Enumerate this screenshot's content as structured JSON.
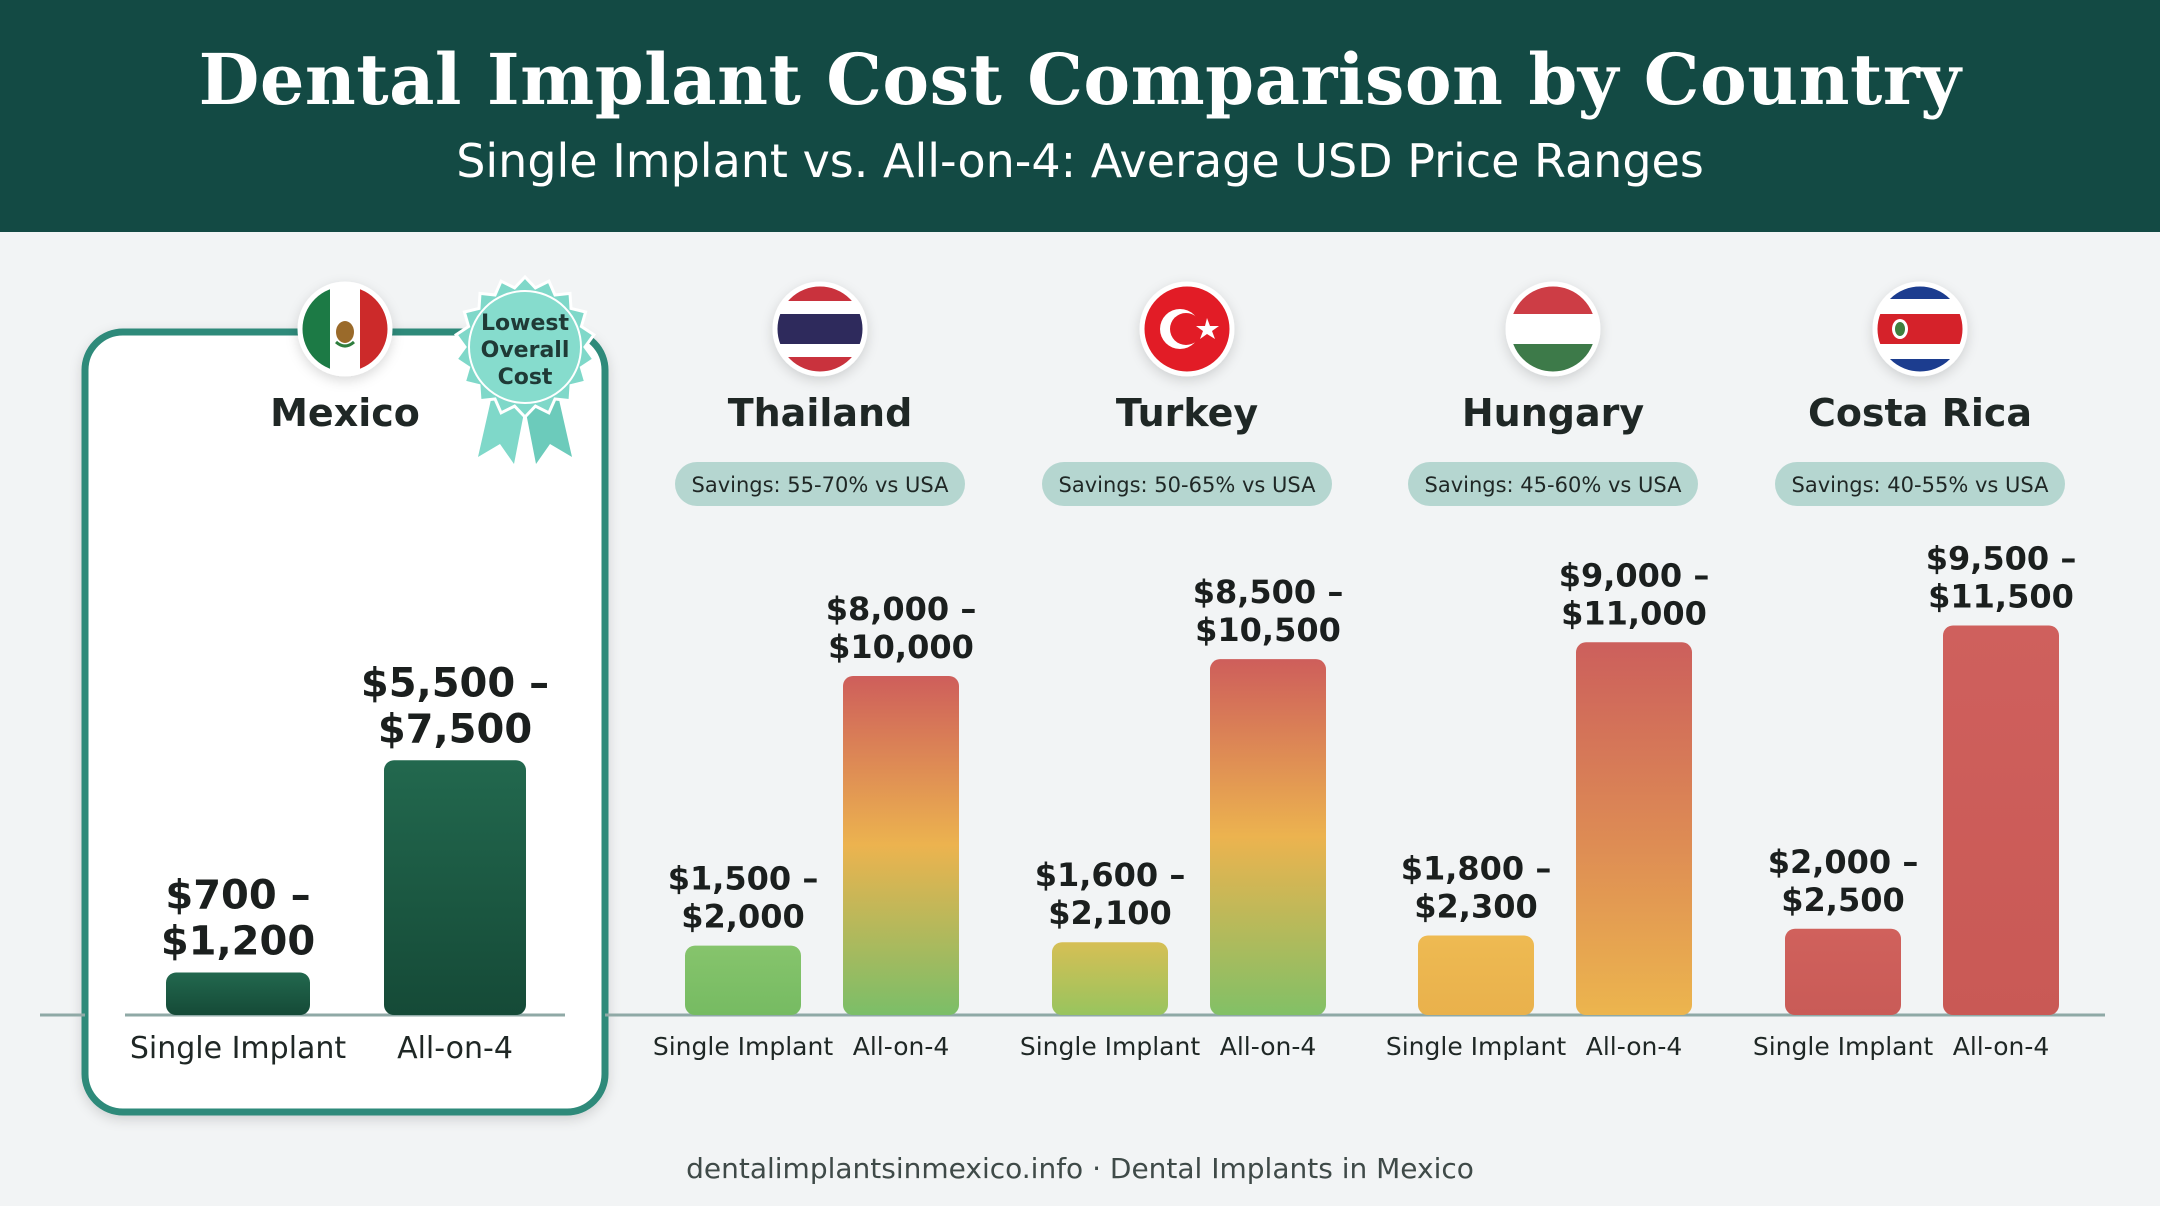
{
  "header": {
    "title": "Dental Implant Cost Comparison by Country",
    "subtitle": "Single Implant vs. All-on-4: Average USD Price Ranges"
  },
  "badge": {
    "lines": [
      "Lowest",
      "Overall",
      "Cost"
    ],
    "color": "#7fd8c9"
  },
  "source": "dentalimplantsinmexico.info · Dental Implants in Mexico",
  "colors": {
    "mexico": "#1d5c44",
    "green": "#7cc06a",
    "yellow": "#edb54f",
    "red": "#cc5f5c",
    "accent": "#2e8a7a"
  },
  "chart_data": {
    "type": "bar",
    "unit": "USD",
    "categories": [
      "Single Implant",
      "All-on-4"
    ],
    "countries": [
      {
        "name": "Mexico",
        "flag": "mexico-flag",
        "savings": "",
        "highlight": true,
        "single": {
          "low": 700,
          "high": 1200,
          "label": "$700 – $1,200"
        },
        "allon4": {
          "low": 5500,
          "high": 7500,
          "label": "$5,500 – $7,500"
        }
      },
      {
        "name": "Thailand",
        "flag": "thailand-flag",
        "savings": "Savings: 55-70% vs USA",
        "highlight": false,
        "single": {
          "low": 1500,
          "high": 2000,
          "label": "$1,500 – $2,000"
        },
        "allon4": {
          "low": 8000,
          "high": 10000,
          "label": "$8,000 – $10,000"
        }
      },
      {
        "name": "Turkey",
        "flag": "turkey-flag",
        "savings": "Savings: 50-65% vs USA",
        "highlight": false,
        "single": {
          "low": 1600,
          "high": 2100,
          "label": "$1,600 – $2,100"
        },
        "allon4": {
          "low": 8500,
          "high": 10500,
          "label": "$8,500 – $10,500"
        }
      },
      {
        "name": "Hungary",
        "flag": "hungary-flag",
        "savings": "Savings: 45-60% vs USA",
        "highlight": false,
        "single": {
          "low": 1800,
          "high": 2300,
          "label": "$1,800 – $2,300"
        },
        "allon4": {
          "low": 9000,
          "high": 11000,
          "label": "$9,000 – $11,000"
        }
      },
      {
        "name": "Costa Rica",
        "flag": "costa-rica-flag",
        "savings": "Savings: 40-55% vs USA",
        "highlight": false,
        "single": {
          "low": 2000,
          "high": 2500,
          "label": "$2,000 – $2,500"
        },
        "allon4": {
          "low": 9500,
          "high": 11500,
          "label": "$9,500 – $11,500"
        }
      }
    ]
  }
}
